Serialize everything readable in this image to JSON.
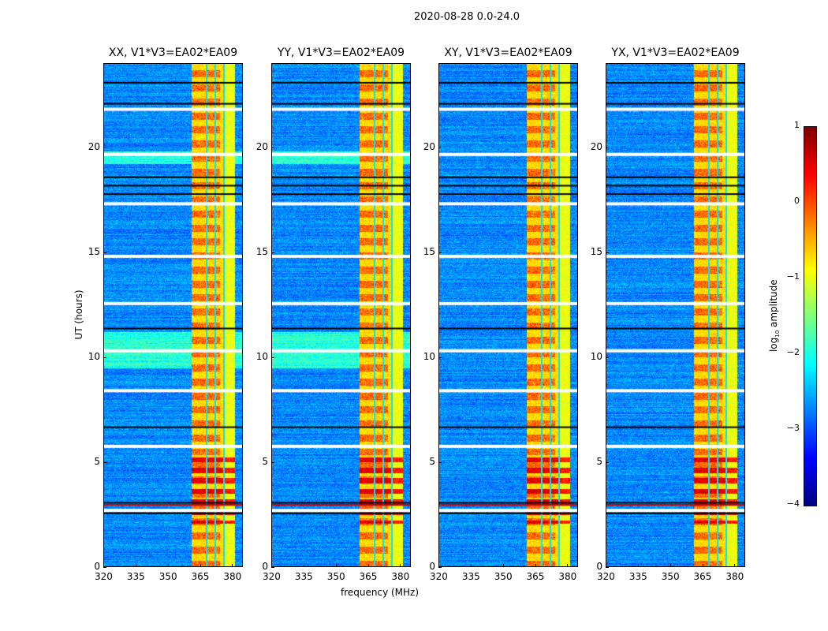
{
  "chart_data": {
    "type": "heatmap",
    "suptitle": "2020-08-28 0.0-24.0",
    "xlabel": "frequency (MHz)",
    "ylabel": "UT (hours)",
    "xlim": [
      320,
      385
    ],
    "ylim": [
      0,
      24
    ],
    "xticks": [
      320,
      335,
      350,
      365,
      380
    ],
    "yticks": [
      0,
      5,
      10,
      15,
      20
    ],
    "panels": [
      {
        "title": "XX, V1*V3=EA02*EA09",
        "cross": false
      },
      {
        "title": "YY, V1*V3=EA02*EA09",
        "cross": false
      },
      {
        "title": "XY, V1*V3=EA02*EA09",
        "cross": true
      },
      {
        "title": "YX, V1*V3=EA02*EA09",
        "cross": true
      }
    ],
    "bright_band_mhz": [
      361,
      381
    ],
    "band_gaps_mhz": [
      368,
      372,
      376
    ],
    "flagged_white_hours": [
      21.8,
      19.65,
      17.3,
      14.8,
      12.55,
      10.3,
      8.4,
      5.75,
      2.7
    ],
    "black_rows_hours": [
      23.1,
      22.1,
      18.6,
      18.2,
      17.8,
      12.6,
      11.4,
      6.7,
      3.1,
      2.6
    ],
    "strong_rfi_hours": [
      3.0,
      4.5
    ],
    "colorbar": {
      "label": "log10 amplitude",
      "label_main": "log",
      "label_sub": "10",
      "label_rest": " amplitude",
      "range": [
        -4,
        1
      ],
      "ticks": [
        "1",
        "0",
        "−1",
        "−2",
        "−3",
        "−4"
      ],
      "colormap": "jet"
    }
  }
}
